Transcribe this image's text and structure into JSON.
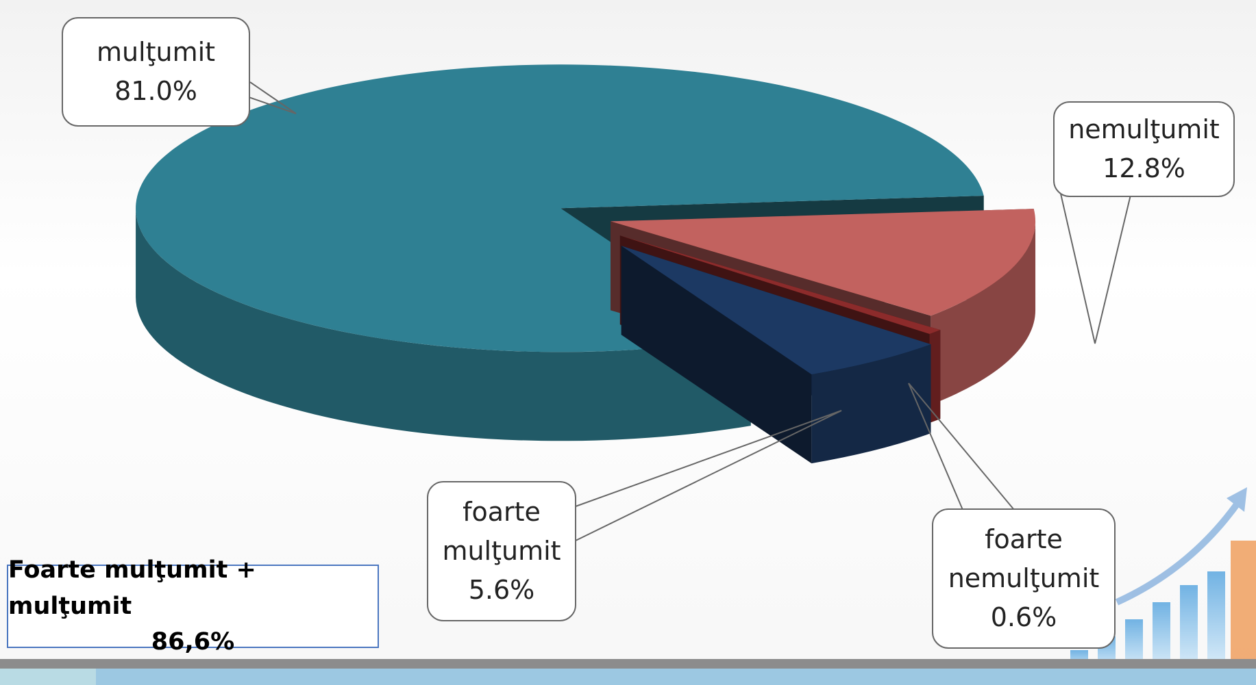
{
  "chart_data": {
    "type": "pie",
    "categories": [
      "mulţumit",
      "nemulţumit",
      "foarte nemulţumit",
      "foarte mulţumit"
    ],
    "values": [
      81.0,
      12.8,
      0.6,
      5.6
    ],
    "value_labels": [
      "81.0%",
      "12.8%",
      "0.6%",
      "5.6%"
    ],
    "colors": [
      "#2f8093",
      "#c2625f",
      "#8c2b2b",
      "#1c3963"
    ],
    "annotation": [
      "Foarte mulţumit + mulţumit",
      "86,6%"
    ]
  }
}
